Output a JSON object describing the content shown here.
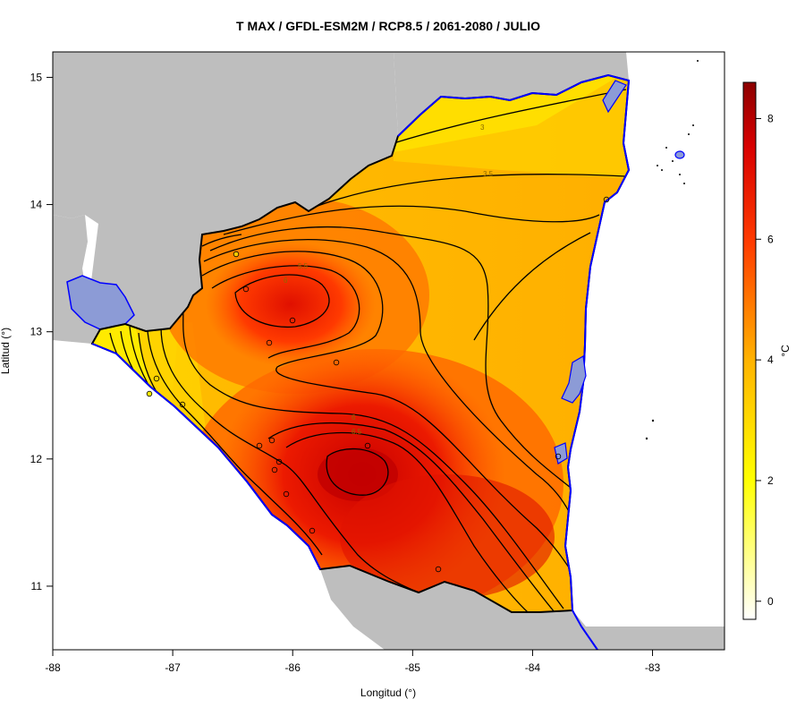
{
  "map": {
    "title": "T MAX / GFDL-ESM2M / RCP8.5 / 2061-2080 / JULIO",
    "xlabel": "Longitud (°)",
    "ylabel": "Latitud (°)",
    "xlim": [
      -88,
      -82.4
    ],
    "ylim": [
      10.5,
      15.2
    ],
    "xticks": [
      -88,
      -87,
      -86,
      -85,
      -84,
      -83
    ],
    "yticks": [
      11,
      12,
      13,
      14,
      15
    ],
    "colorbar": {
      "label": "°C",
      "range": [
        -0.3,
        8.6
      ],
      "ticks": [
        0,
        2,
        4,
        6,
        8
      ],
      "colors": [
        "#ffffff",
        "#ffff00",
        "#ffc800",
        "#ff9600",
        "#ff3c00",
        "#dc0000",
        "#8b0000"
      ]
    },
    "contour_labels": [
      "3",
      "3.5",
      "5.5",
      "6",
      "6",
      "6.5"
    ],
    "colors": {
      "land_outside": "#bebebe",
      "coastline": "#0000ff",
      "lake": "#8c9bd6",
      "contour": "#000000"
    }
  }
}
